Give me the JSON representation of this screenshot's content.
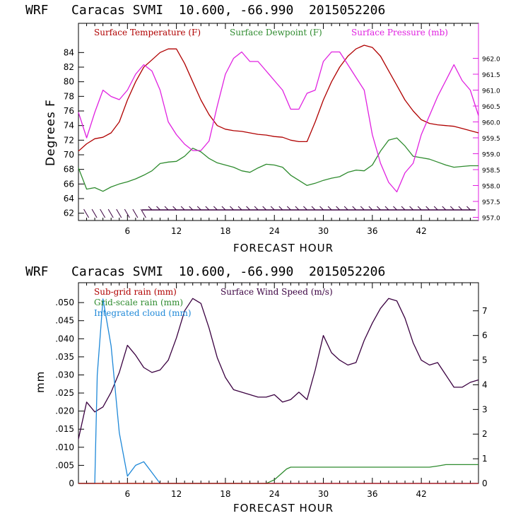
{
  "colors": {
    "temperature": "#b00000",
    "dewpoint": "#2e8b2e",
    "pressure": "#e020e0",
    "wind": "#3a0040",
    "subgrid_rain": "#b00000",
    "gridscale_rain": "#2e8b2e",
    "cloud": "#1e88d8",
    "barb": "#3a0040"
  },
  "chart_data": [
    {
      "type": "line",
      "title": "WRF   Caracas SVMI  10.600, -66.990  2015052206",
      "xlabel": "FORECAST HOUR",
      "ylabel": "Degrees F",
      "xlim": [
        0,
        49
      ],
      "ylim": [
        61,
        88
      ],
      "y2lim": [
        956.9,
        963.1
      ],
      "xticks": [
        6,
        12,
        18,
        24,
        30,
        36,
        42
      ],
      "yticks": [
        62,
        64,
        66,
        68,
        70,
        72,
        74,
        76,
        78,
        80,
        82,
        84
      ],
      "y2ticks": [
        "957.0",
        "957.5",
        "958.0",
        "958.5",
        "959.0",
        "959.5",
        "960.0",
        "960.5",
        "961.0",
        "961.5",
        "962.0"
      ],
      "legend": [
        "Surface Temperature (F)",
        "Surface Dewpoint (F)",
        "Surface Pressure (mb)"
      ],
      "series": [
        {
          "name": "Surface Temperature (F)",
          "axis": "left",
          "x": [
            0,
            1,
            2,
            3,
            4,
            5,
            6,
            7,
            8,
            9,
            10,
            11,
            12,
            13,
            14,
            15,
            16,
            17,
            18,
            19,
            20,
            21,
            22,
            23,
            24,
            25,
            26,
            27,
            28,
            29,
            30,
            31,
            32,
            33,
            34,
            35,
            36,
            37,
            38,
            39,
            40,
            41,
            42,
            43,
            44,
            45,
            46,
            47,
            48,
            49
          ],
          "values": [
            70.5,
            71.5,
            72.2,
            72.4,
            73.0,
            74.5,
            77.5,
            80.0,
            82.0,
            83.0,
            84.0,
            84.5,
            84.5,
            82.5,
            80.0,
            77.5,
            75.5,
            74.0,
            73.5,
            73.3,
            73.2,
            73.0,
            72.8,
            72.7,
            72.5,
            72.4,
            72.0,
            71.8,
            71.8,
            74.5,
            77.5,
            80.0,
            82.0,
            83.5,
            84.5,
            85.0,
            84.7,
            83.5,
            81.5,
            79.5,
            77.5,
            76.0,
            74.8,
            74.3,
            74.1,
            74.0,
            73.9,
            73.6,
            73.3,
            73.0
          ]
        },
        {
          "name": "Surface Dewpoint (F)",
          "axis": "left",
          "x": [
            0,
            1,
            2,
            3,
            4,
            5,
            6,
            7,
            8,
            9,
            10,
            11,
            12,
            13,
            14,
            15,
            16,
            17,
            18,
            19,
            20,
            21,
            22,
            23,
            24,
            25,
            26,
            27,
            28,
            29,
            30,
            31,
            32,
            33,
            34,
            35,
            36,
            37,
            38,
            39,
            40,
            41,
            42,
            43,
            44,
            45,
            46,
            47,
            48,
            49
          ],
          "values": [
            68.2,
            65.3,
            65.5,
            65.0,
            65.6,
            66.0,
            66.3,
            66.7,
            67.2,
            67.8,
            68.8,
            69.0,
            69.1,
            69.8,
            70.9,
            70.4,
            69.5,
            68.9,
            68.6,
            68.3,
            67.8,
            67.6,
            68.2,
            68.7,
            68.6,
            68.3,
            67.2,
            66.5,
            65.8,
            66.1,
            66.5,
            66.8,
            67.0,
            67.6,
            67.9,
            67.8,
            68.6,
            70.5,
            72.0,
            72.3,
            71.2,
            69.8,
            69.6,
            69.4,
            69.0,
            68.6,
            68.3,
            68.4,
            68.5,
            68.5
          ]
        },
        {
          "name": "Surface Pressure (mb)",
          "axis": "right",
          "x": [
            0,
            1,
            2,
            3,
            4,
            5,
            6,
            7,
            8,
            9,
            10,
            11,
            12,
            13,
            14,
            15,
            16,
            17,
            18,
            19,
            20,
            21,
            22,
            23,
            24,
            25,
            26,
            27,
            28,
            29,
            30,
            31,
            32,
            33,
            34,
            35,
            36,
            37,
            38,
            39,
            40,
            41,
            42,
            43,
            44,
            45,
            46,
            47,
            48,
            49
          ],
          "values": [
            960.3,
            959.5,
            960.3,
            961.0,
            960.8,
            960.7,
            961.0,
            961.5,
            961.8,
            961.6,
            961.0,
            960.0,
            959.6,
            959.3,
            959.1,
            959.1,
            959.4,
            960.5,
            961.5,
            962.0,
            962.2,
            961.9,
            961.9,
            961.6,
            961.3,
            961.0,
            960.4,
            960.4,
            960.9,
            961.0,
            961.9,
            962.2,
            962.2,
            961.8,
            961.4,
            961.0,
            959.6,
            958.7,
            958.1,
            957.8,
            958.4,
            958.7,
            959.6,
            960.2,
            960.8,
            961.3,
            961.8,
            961.3,
            961.0,
            960.2
          ]
        }
      ]
    },
    {
      "type": "line",
      "title": "WRF   Caracas SVMI  10.600, -66.990  2015052206",
      "xlabel": "FORECAST HOUR",
      "ylabel": "mm",
      "xlim": [
        0,
        49
      ],
      "ylim": [
        0,
        0.0555
      ],
      "y2lim": [
        0,
        8.14
      ],
      "xticks": [
        6,
        12,
        18,
        24,
        30,
        36,
        42
      ],
      "yticks": [
        "0",
        ".005",
        ".010",
        ".015",
        ".020",
        ".025",
        ".030",
        ".035",
        ".040",
        ".045",
        ".050"
      ],
      "y2ticks": [
        "0",
        "1",
        "2",
        "3",
        "4",
        "5",
        "6",
        "7"
      ],
      "legend": [
        "Sub-grid rain (mm)",
        "Grid-scale rain (mm)",
        "Integrated cloud (mm)",
        "Surface Wind Speed (m/s)"
      ],
      "series": [
        {
          "name": "Surface Wind Speed (m/s)",
          "axis": "right",
          "x": [
            0,
            1,
            2,
            3,
            4,
            5,
            6,
            7,
            8,
            9,
            10,
            11,
            12,
            13,
            14,
            15,
            16,
            17,
            18,
            19,
            20,
            21,
            22,
            23,
            24,
            25,
            26,
            27,
            28,
            29,
            30,
            31,
            32,
            33,
            34,
            35,
            36,
            37,
            38,
            39,
            40,
            41,
            42,
            43,
            44,
            45,
            46,
            47,
            48,
            49
          ],
          "values": [
            1.8,
            3.3,
            2.9,
            3.1,
            3.7,
            4.5,
            5.6,
            5.2,
            4.7,
            4.5,
            4.6,
            5.0,
            5.9,
            7.0,
            7.5,
            7.3,
            6.3,
            5.1,
            4.3,
            3.8,
            3.7,
            3.6,
            3.5,
            3.5,
            3.6,
            3.3,
            3.4,
            3.7,
            3.4,
            4.6,
            6.0,
            5.3,
            5.0,
            4.8,
            4.9,
            5.8,
            6.5,
            7.1,
            7.5,
            7.4,
            6.7,
            5.7,
            5.0,
            4.8,
            4.9,
            4.4,
            3.9,
            3.9,
            4.1,
            4.2
          ]
        },
        {
          "name": "Integrated cloud (mm)",
          "axis": "left",
          "x": [
            0,
            1,
            2,
            2.3,
            3,
            4,
            5,
            6,
            7,
            8,
            9,
            10,
            11,
            49
          ],
          "values": [
            0,
            0,
            0,
            0.03,
            0.051,
            0.038,
            0.014,
            0.002,
            0.005,
            0.006,
            0.003,
            0.0,
            0,
            0
          ]
        },
        {
          "name": "Grid-scale rain (mm)",
          "axis": "left",
          "x": [
            0,
            23,
            24,
            25,
            25.5,
            26,
            43,
            44,
            45,
            49
          ],
          "values": [
            0,
            0,
            0.001,
            0.003,
            0.004,
            0.0045,
            0.0045,
            0.0048,
            0.0052,
            0.0052
          ]
        },
        {
          "name": "Sub-grid rain (mm)",
          "axis": "left",
          "x": [
            0,
            49
          ],
          "values": [
            0,
            0
          ]
        }
      ]
    }
  ]
}
